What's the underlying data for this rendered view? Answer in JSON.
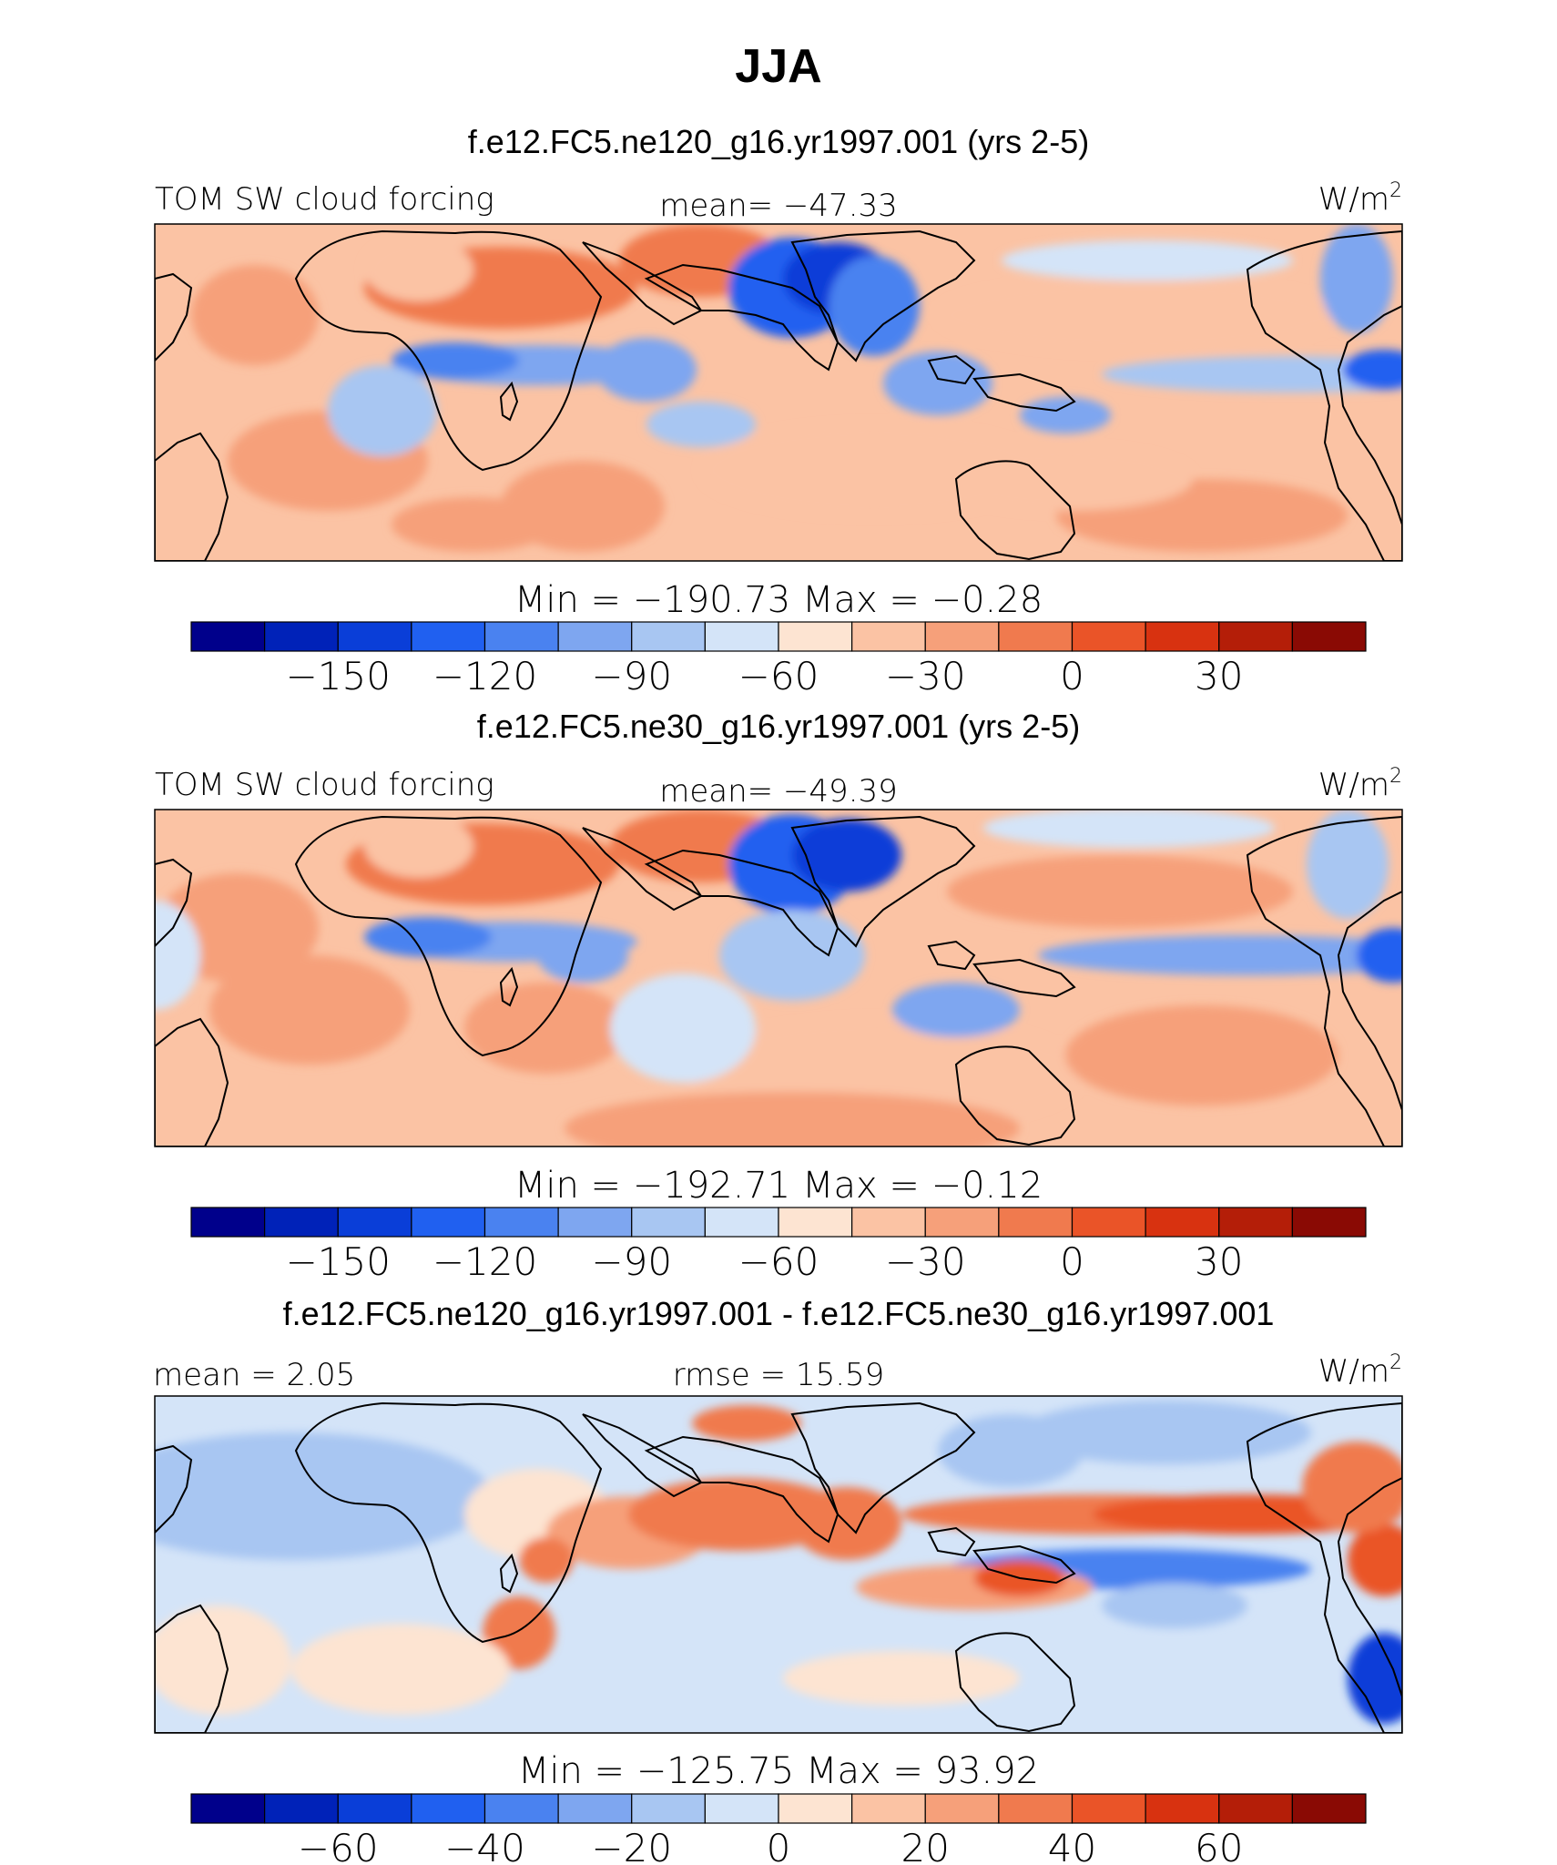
{
  "figure": {
    "title": "JJA",
    "colors": {
      "scale": [
        "#00008b",
        "#0022b8",
        "#0a3ed8",
        "#2060f0",
        "#4a82f0",
        "#7ea6f0",
        "#a8c6f2",
        "#d4e4f8",
        "#fde4d2",
        "#fbc3a4",
        "#f6a07a",
        "#f07a4e",
        "#ea5428",
        "#d83210",
        "#b41e08",
        "#8a0a04"
      ],
      "land_line": "#000000",
      "frame": "#000000"
    }
  },
  "chart_data": [
    {
      "type": "heatmap",
      "subtitle": "f.e12.FC5.ne120_g16.yr1997.001 (yrs 2-5)",
      "variable": "TOM SW cloud forcing",
      "mean_text": "mean= −47.33",
      "units_text": "W/m",
      "units_sup": "2",
      "minmax_text": "Min = −190.73 Max = −0.28",
      "colorbar_ticks": [
        "−150",
        "−120",
        "−90",
        "−60",
        "−30",
        "0",
        "30"
      ],
      "colorbar_tick_positions": [
        2,
        4,
        6,
        8,
        10,
        12,
        14
      ],
      "levels": [
        -165,
        -150,
        -135,
        -120,
        -105,
        -90,
        -75,
        -60,
        -45,
        -30,
        -15,
        0,
        15,
        30,
        45
      ],
      "region": "tropics 40S-40N, global longitude"
    },
    {
      "type": "heatmap",
      "subtitle": "f.e12.FC5.ne30_g16.yr1997.001 (yrs 2-5)",
      "variable": "TOM SW cloud forcing",
      "mean_text": "mean= −49.39",
      "units_text": "W/m",
      "units_sup": "2",
      "minmax_text": "Min = −192.71 Max = −0.12",
      "colorbar_ticks": [
        "−150",
        "−120",
        "−90",
        "−60",
        "−30",
        "0",
        "30"
      ],
      "colorbar_tick_positions": [
        2,
        4,
        6,
        8,
        10,
        12,
        14
      ],
      "levels": [
        -165,
        -150,
        -135,
        -120,
        -105,
        -90,
        -75,
        -60,
        -45,
        -30,
        -15,
        0,
        15,
        30,
        45
      ],
      "region": "tropics 40S-40N, global longitude"
    },
    {
      "type": "heatmap",
      "subtitle": "f.e12.FC5.ne120_g16.yr1997.001 - f.e12.FC5.ne30_g16.yr1997.001",
      "mean_text": "mean = 2.05",
      "rmse_text": "rmse = 15.59",
      "units_text": "W/m",
      "units_sup": "2",
      "minmax_text": "Min = −125.75 Max = 93.92",
      "colorbar_ticks": [
        "−60",
        "−40",
        "−20",
        "0",
        "20",
        "40",
        "60"
      ],
      "colorbar_tick_positions": [
        2,
        4,
        6,
        8,
        10,
        12,
        14
      ],
      "levels": [
        -70,
        -60,
        -50,
        -40,
        -30,
        -20,
        -10,
        0,
        10,
        20,
        30,
        40,
        50,
        60,
        70
      ],
      "region": "tropics 40S-40N, global longitude"
    }
  ]
}
